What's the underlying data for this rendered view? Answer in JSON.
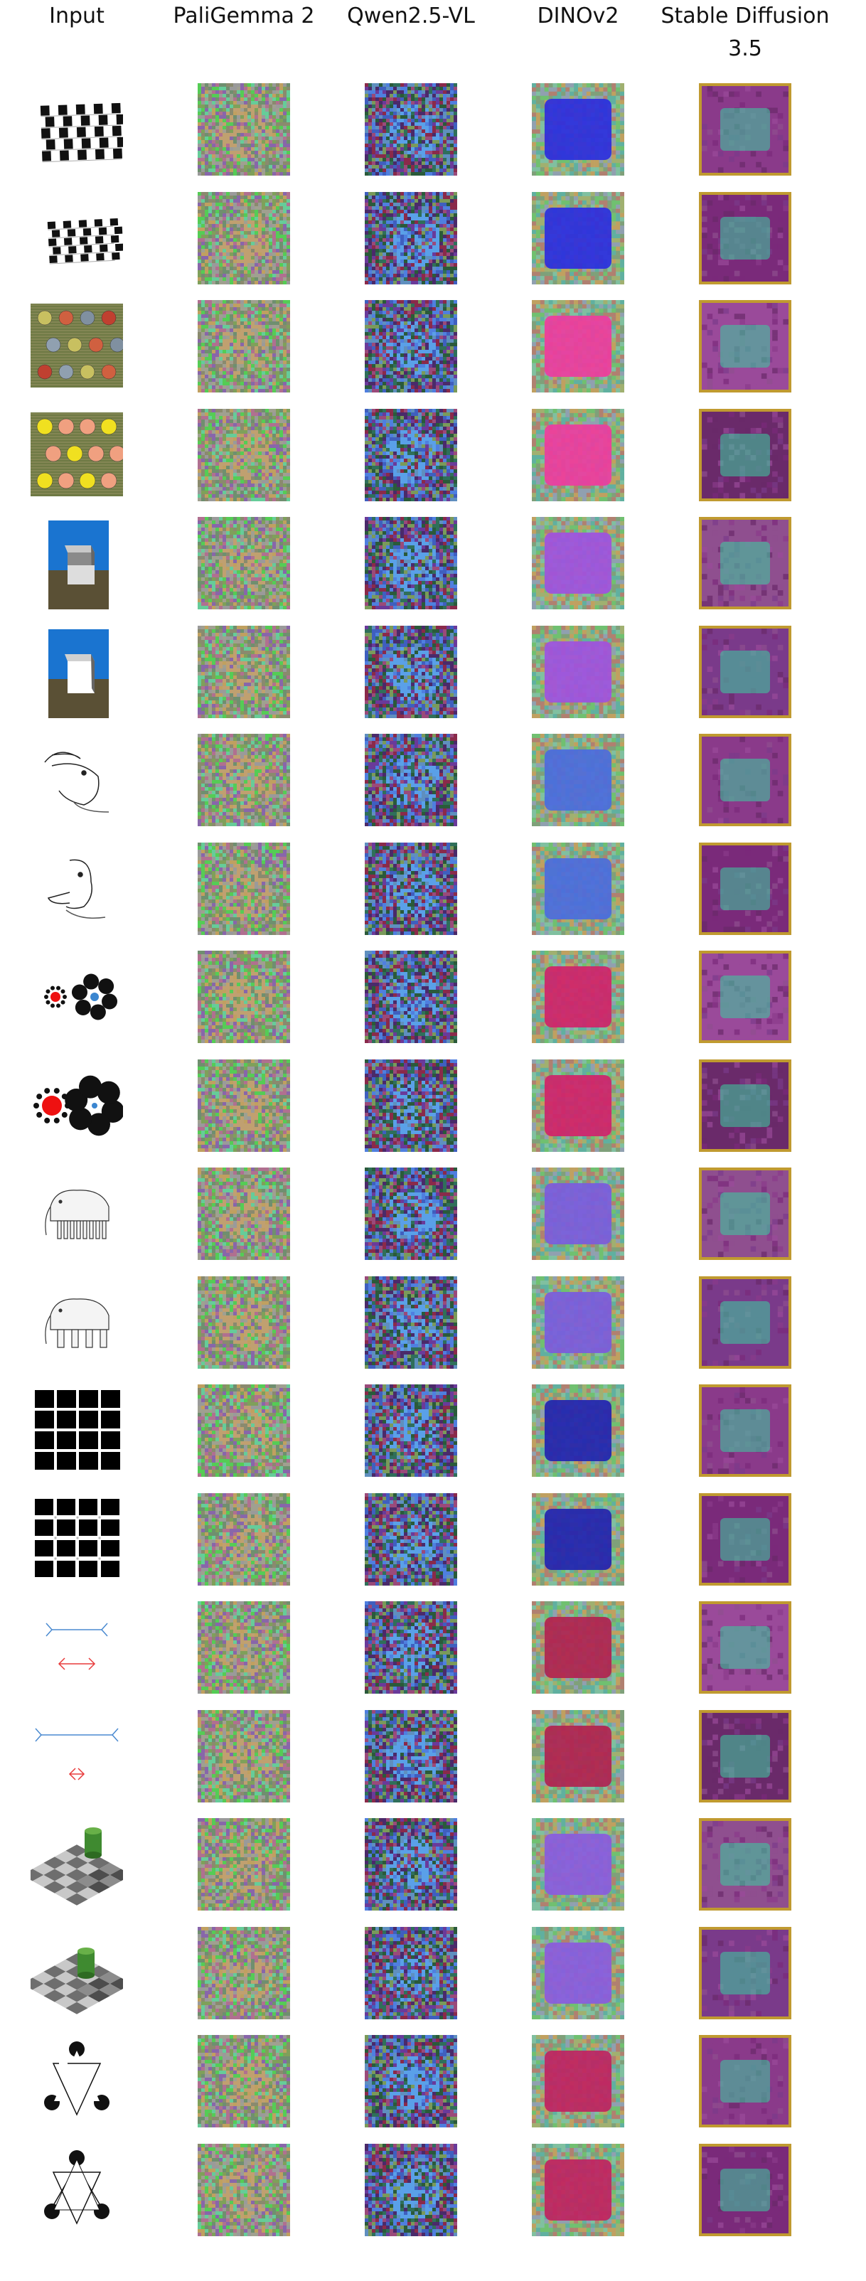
{
  "figure": {
    "columns": [
      {
        "key": "input",
        "label": "Input"
      },
      {
        "key": "paligemma",
        "label": "PaliGemma 2"
      },
      {
        "key": "qwen",
        "label": "Qwen2.5-VL"
      },
      {
        "key": "dinov2",
        "label": "DINOv2"
      },
      {
        "key": "sd35",
        "label": "Stable Diffusion 3.5"
      }
    ],
    "rows": [
      {
        "illusion": "cafe-wall",
        "variant": "original"
      },
      {
        "illusion": "cafe-wall",
        "variant": "perturbed"
      },
      {
        "illusion": "munker",
        "variant": "original"
      },
      {
        "illusion": "munker",
        "variant": "perturbed"
      },
      {
        "illusion": "cube-shading",
        "variant": "original"
      },
      {
        "illusion": "cube-shading",
        "variant": "perturbed"
      },
      {
        "illusion": "rabbit-duck",
        "variant": "original"
      },
      {
        "illusion": "rabbit-duck",
        "variant": "perturbed"
      },
      {
        "illusion": "ebbinghaus",
        "variant": "original"
      },
      {
        "illusion": "ebbinghaus",
        "variant": "perturbed"
      },
      {
        "illusion": "elephant-legs",
        "variant": "original"
      },
      {
        "illusion": "elephant-legs",
        "variant": "perturbed"
      },
      {
        "illusion": "hermann-grid",
        "variant": "original"
      },
      {
        "illusion": "hermann-grid",
        "variant": "perturbed"
      },
      {
        "illusion": "muller-lyer",
        "variant": "original"
      },
      {
        "illusion": "muller-lyer",
        "variant": "perturbed"
      },
      {
        "illusion": "checker-shadow",
        "variant": "original"
      },
      {
        "illusion": "checker-shadow",
        "variant": "perturbed"
      },
      {
        "illusion": "kanizsa-triangle",
        "variant": "original"
      },
      {
        "illusion": "kanizsa-triangle",
        "variant": "perturbed"
      }
    ],
    "palettes": {
      "paligemma": [
        "#8a8a6e",
        "#7fa05a",
        "#a0a090",
        "#55cc55",
        "#b07090",
        "#9a9a9a",
        "#6f8f6f",
        "#c0a060",
        "#66cc99",
        "#8866aa"
      ],
      "qwen": [
        "#4a2a6a",
        "#2f6f5a",
        "#8a2a4a",
        "#3f5fbf",
        "#6a3a9a",
        "#5f8fbf",
        "#2a5a3a",
        "#9a4a7a",
        "#4f7fdf",
        "#7a9a5a"
      ],
      "dinov2": [
        "#7fa07a",
        "#a0b070",
        "#60b0a0",
        "#c0a060",
        "#70c070",
        "#90a0b0",
        "#b08070",
        "#80c0a0"
      ],
      "sd35": [
        "#8a3a8a",
        "#7a2a7a",
        "#9a4a9a",
        "#6a2a6a",
        "#8f4f8f",
        "#7a3a8a"
      ]
    }
  }
}
